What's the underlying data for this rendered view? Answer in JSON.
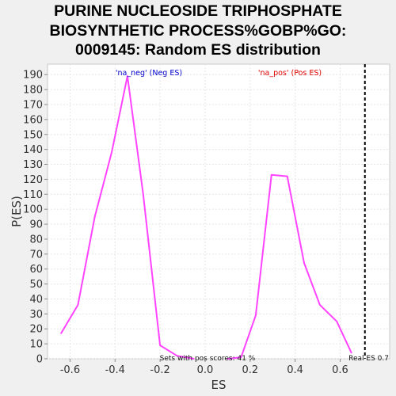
{
  "title_lines": [
    "PURINE NUCLEOSIDE TRIPHOSPHATE",
    "BIOSYNTHETIC PROCESS%GOBP%GO:",
    "0009145: Random ES distribution"
  ],
  "chart_data": {
    "type": "line",
    "title": "PURINE NUCLEOSIDE TRIPHOSPHATE BIOSYNTHETIC PROCESS%GOBP%GO:0009145: Random ES distribution",
    "xlabel": "ES",
    "ylabel": "P(ES)",
    "xlim": [
      -0.7,
      0.82
    ],
    "ylim": [
      0,
      197
    ],
    "x_ticks": [
      -0.6,
      -0.4,
      -0.2,
      0.0,
      0.2,
      0.4,
      0.6
    ],
    "x_tick_labels": [
      "-0.6",
      "-0.4",
      "-0.2",
      "0.0",
      "0.2",
      "0.4",
      "0.6"
    ],
    "y_ticks": [
      0,
      10,
      20,
      30,
      40,
      50,
      60,
      70,
      80,
      90,
      100,
      110,
      120,
      130,
      140,
      150,
      160,
      170,
      180,
      190
    ],
    "grid": true,
    "line_color": "#ff44ff",
    "series": [
      {
        "name": "'na_neg' (Neg ES)",
        "color": "#0000cc",
        "x": [
          -0.64,
          -0.565,
          -0.49,
          -0.415,
          -0.345,
          -0.275,
          -0.2,
          -0.125,
          -0.05
        ],
        "y": [
          17,
          36,
          95,
          138,
          189,
          110,
          9,
          2,
          0
        ]
      },
      {
        "name": "'na_pos' (Pos ES)",
        "color": "#dd0000",
        "x": [
          0.1,
          0.16,
          0.225,
          0.295,
          0.365,
          0.44,
          0.51,
          0.585,
          0.65
        ],
        "y": [
          0,
          1,
          29,
          123,
          122,
          64,
          36,
          25,
          4
        ]
      }
    ],
    "annotations": {
      "pos_fraction_text": "Sets with pos scores: 41 %",
      "real_es_text": "Real ES 0.7",
      "real_es_value": 0.71
    }
  }
}
